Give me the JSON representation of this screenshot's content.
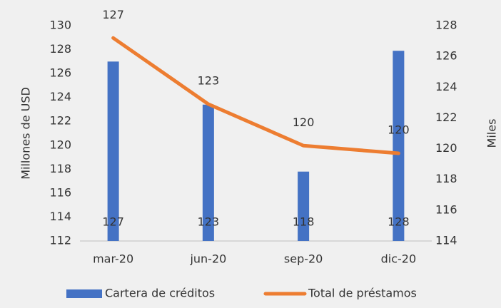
{
  "chart_data": {
    "type": "bar",
    "categories": [
      "mar-20",
      "jun-20",
      "sep-20",
      "dic-20"
    ],
    "series": [
      {
        "name": "Cartera de créditos",
        "type": "bar",
        "color": "#4472c4",
        "values": [
          127,
          123.4,
          117.8,
          127.9
        ],
        "value_labels": [
          "127",
          "123",
          "118",
          "128"
        ]
      },
      {
        "name": "Total de préstamos",
        "type": "line",
        "axis": "y2",
        "color": "#ed7d31",
        "values": [
          127.2,
          122.9,
          120.2,
          119.7
        ],
        "value_labels": [
          "127",
          "123",
          "120",
          "120"
        ]
      }
    ],
    "ylabel": "Millones de USD",
    "y2label": "Miles",
    "ylim": [
      112,
      130
    ],
    "yticks": [
      112,
      114,
      116,
      118,
      120,
      122,
      124,
      126,
      128,
      130
    ],
    "y2lim": [
      114,
      128
    ],
    "y2ticks": [
      114,
      116,
      118,
      120,
      122,
      124,
      126,
      128
    ],
    "grid": false,
    "legend": "bottom"
  }
}
